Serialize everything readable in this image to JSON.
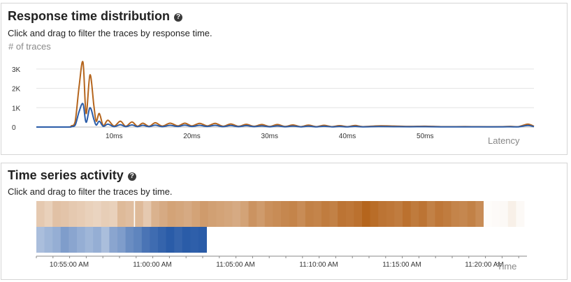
{
  "response_panel": {
    "title": "Response time distribution",
    "help": "?",
    "subtitle": "Click and drag to filter the traces by response time.",
    "y_axis_title": "# of traces",
    "x_axis_title": "Latency",
    "y_ticks": [
      "3K",
      "2K",
      "1K",
      "0"
    ],
    "x_ticks": [
      "10ms",
      "20ms",
      "30ms",
      "40ms",
      "50ms"
    ]
  },
  "timeseries_panel": {
    "title": "Time series activity",
    "help": "?",
    "subtitle": "Click and drag to filter the traces by time.",
    "x_axis_title": "Time",
    "x_ticks": [
      "10:55:00 AM",
      "11:00:00 AM",
      "11:05:00 AM",
      "11:10:00 AM",
      "11:15:00 AM",
      "11:20:00 AM"
    ]
  },
  "chart_data": [
    {
      "type": "line",
      "title": "Response time distribution",
      "xlabel": "Latency",
      "ylabel": "# of traces",
      "x_unit": "ms",
      "xlim": [
        0,
        64
      ],
      "ylim": [
        0,
        3500
      ],
      "y_ticks": [
        0,
        1000,
        2000,
        3000
      ],
      "x_ticks": [
        10,
        20,
        30,
        40,
        50
      ],
      "colors": {
        "series_1": "#b5651d",
        "series_2": "#2a5ca8"
      },
      "series": [
        {
          "name": "series_1",
          "x": [
            0,
            4,
            4.5,
            5,
            5.5,
            6,
            6.4,
            6.9,
            7.4,
            7.7,
            8.1,
            8.6,
            9.2,
            10,
            10.8,
            11.5,
            12.3,
            13,
            13.7,
            14.5,
            15.3,
            16.2,
            17.2,
            18.2,
            19.1,
            20,
            21,
            22,
            23,
            24,
            25,
            26,
            27,
            28,
            29,
            30,
            31,
            32,
            33,
            34,
            35,
            36,
            37,
            38,
            39,
            40,
            41,
            42,
            44,
            46,
            48,
            50,
            52,
            54,
            56,
            58,
            60,
            61,
            62,
            63.2,
            64
          ],
          "y": [
            0,
            0,
            60,
            300,
            2100,
            3350,
            700,
            2700,
            1100,
            300,
            700,
            80,
            350,
            50,
            300,
            40,
            260,
            40,
            200,
            40,
            220,
            50,
            200,
            60,
            200,
            60,
            190,
            60,
            190,
            40,
            160,
            40,
            140,
            40,
            130,
            30,
            130,
            30,
            110,
            20,
            100,
            20,
            90,
            20,
            70,
            20,
            80,
            20,
            60,
            50,
            30,
            40,
            20,
            20,
            20,
            15,
            20,
            30,
            20,
            150,
            40
          ]
        },
        {
          "name": "series_2",
          "x": [
            0,
            4,
            4.5,
            5,
            5.5,
            6,
            6.4,
            6.9,
            7.4,
            7.7,
            8.1,
            8.6,
            9.2,
            10,
            10.8,
            11.5,
            12.3,
            13,
            13.7,
            14.5,
            15.3,
            16.2,
            17.2,
            18.2,
            19.1,
            20,
            21,
            22,
            23,
            24,
            25,
            26,
            27,
            28,
            29,
            30,
            31,
            32,
            33,
            34,
            35,
            36,
            37,
            38,
            39,
            40,
            41,
            42,
            44,
            46,
            48,
            50,
            52,
            54,
            56,
            58,
            60,
            61,
            62,
            63.2,
            64
          ],
          "y": [
            0,
            0,
            20,
            100,
            800,
            1200,
            250,
            1000,
            400,
            100,
            300,
            40,
            150,
            20,
            120,
            20,
            110,
            20,
            90,
            20,
            100,
            20,
            90,
            30,
            100,
            30,
            90,
            30,
            90,
            20,
            80,
            20,
            70,
            20,
            60,
            15,
            60,
            15,
            50,
            10,
            45,
            10,
            40,
            10,
            30,
            10,
            35,
            10,
            25,
            20,
            15,
            20,
            10,
            10,
            10,
            8,
            10,
            15,
            10,
            80,
            20
          ]
        }
      ]
    },
    {
      "type": "heatmap",
      "title": "Time series activity",
      "xlabel": "Time",
      "x_ticks": [
        "10:55:00 AM",
        "11:00:00 AM",
        "11:05:00 AM",
        "11:10:00 AM",
        "11:15:00 AM",
        "11:20:00 AM"
      ],
      "colors": {
        "row_1": "#b5651d",
        "row_2": "#2a5ca8"
      },
      "rows": [
        {
          "name": "row_1",
          "cells": [
            0.35,
            0.3,
            0.4,
            0.38,
            0.35,
            0.33,
            0.3,
            0.28,
            0.32,
            0.3,
            0.45,
            0.42,
            0.45,
            0.35,
            0.5,
            0.55,
            0.6,
            0.58,
            0.55,
            0.6,
            0.65,
            0.62,
            0.6,
            0.58,
            0.55,
            0.6,
            0.7,
            0.65,
            0.72,
            0.75,
            0.78,
            0.8,
            0.75,
            0.82,
            0.8,
            0.85,
            0.82,
            0.9,
            0.88,
            0.92,
            1.0,
            0.95,
            0.9,
            0.88,
            0.85,
            0.92,
            0.86,
            0.9,
            0.82,
            0.88,
            0.85,
            0.8,
            0.78,
            0.82,
            0.75,
            0.02,
            0.03,
            0.04,
            0.1,
            0.04,
            0.06,
            0.02,
            0.01,
            0.05,
            0.02,
            0,
            0.03,
            0.02,
            0.01,
            0.02,
            0,
            0,
            0,
            0.03,
            0,
            0.01,
            0,
            0,
            0,
            0,
            0,
            0,
            0
          ],
          "count": 83
        },
        {
          "name": "row_2",
          "cells": [
            0.4,
            0.45,
            0.5,
            0.6,
            0.55,
            0.5,
            0.45,
            0.5,
            0.4,
            0.55,
            0.6,
            0.7,
            0.75,
            0.85,
            0.9,
            0.95,
            1.0,
            0.95,
            1.0,
            0.98,
            1.0
          ],
          "count": 21
        }
      ]
    }
  ]
}
